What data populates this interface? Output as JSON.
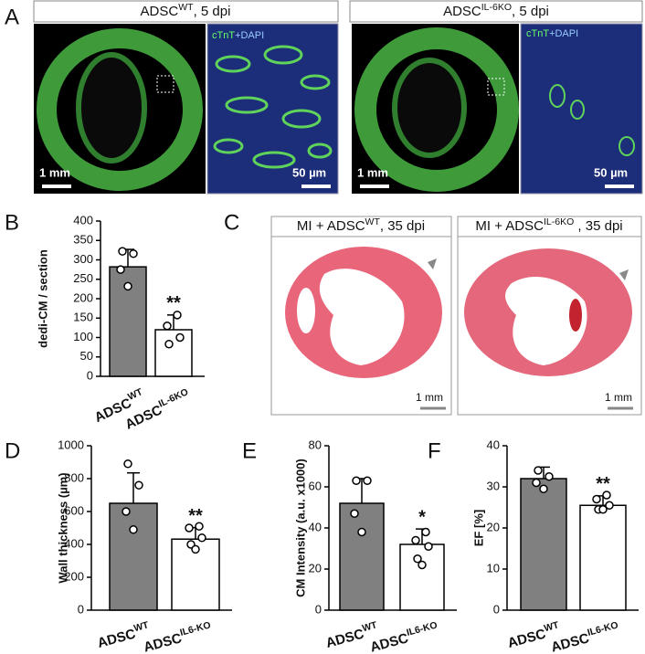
{
  "panel_a": {
    "letter": "A",
    "left": {
      "title": {
        "base": "ADSC",
        "sup": "WT",
        "rest": ", 5 dpi"
      },
      "stain": [
        "cTnT",
        "+DAPI"
      ],
      "scale_overview": "1 mm",
      "scale_zoom": "50 µm"
    },
    "right": {
      "title": {
        "base": "ADSC",
        "sup": "IL-6KO",
        "rest": ", 5 dpi"
      },
      "stain": [
        "cTnT",
        "+DAPI"
      ],
      "scale_overview": "1 mm",
      "scale_zoom": "50 µm"
    }
  },
  "panel_c": {
    "letter": "C",
    "left": {
      "title": {
        "base": "MI + ADSC",
        "sup": "WT",
        "rest": ", 35 dpi"
      },
      "scale": "1 mm"
    },
    "right": {
      "title": {
        "base": "MI + ADSC",
        "sup": "IL-6KO",
        "rest": " , 35 dpi"
      },
      "scale": "1 mm"
    }
  },
  "chart_data": [
    {
      "type": "bar",
      "label": "B",
      "ylabel": "dedi-CM / section",
      "categories": [
        {
          "base": "ADSC",
          "sup": "WT"
        },
        {
          "base": "ADSC",
          "sup": "IL-6KO"
        }
      ],
      "colors": [
        "#808080",
        "#ffffff"
      ],
      "values": [
        282,
        120
      ],
      "errors": [
        45,
        38
      ],
      "points": [
        [
          322,
          316,
          275,
          232
        ],
        [
          158,
          130,
          100,
          83
        ]
      ],
      "significance": [
        null,
        "**"
      ],
      "ylim": [
        0,
        400
      ],
      "yticks": [
        0,
        50,
        100,
        150,
        200,
        250,
        300,
        350,
        400
      ]
    },
    {
      "type": "bar",
      "label": "D",
      "ylabel": "Wall thickness (µm)",
      "categories": [
        {
          "base": "ADSC",
          "sup": "WT"
        },
        {
          "base": "ADSC",
          "sup": "IL6-KO"
        }
      ],
      "colors": [
        "#808080",
        "#ffffff"
      ],
      "values": [
        650,
        432
      ],
      "errors": [
        185,
        70
      ],
      "points": [
        [
          890,
          760,
          600,
          490
        ],
        [
          510,
          500,
          440,
          400,
          370
        ]
      ],
      "significance": [
        null,
        "**"
      ],
      "ylim": [
        0,
        1000
      ],
      "yticks": [
        0,
        200,
        400,
        600,
        800,
        1000
      ]
    },
    {
      "type": "bar",
      "label": "E",
      "ylabel": "CM Intensity (a.u. x1000)",
      "categories": [
        {
          "base": "ADSC",
          "sup": "WT"
        },
        {
          "base": "ADSC",
          "sup": "IL6-KO"
        }
      ],
      "colors": [
        "#808080",
        "#ffffff"
      ],
      "values": [
        52,
        32
      ],
      "errors": [
        12,
        7.5
      ],
      "points": [
        [
          63,
          63,
          47,
          38
        ],
        [
          38,
          34,
          31,
          25,
          22
        ]
      ],
      "significance": [
        null,
        "*"
      ],
      "ylim": [
        0,
        80
      ],
      "yticks": [
        0,
        20,
        40,
        60,
        80
      ]
    },
    {
      "type": "bar",
      "label": "F",
      "ylabel": "EF [%]",
      "categories": [
        {
          "base": "ADSC",
          "sup": "WT"
        },
        {
          "base": "ADSC",
          "sup": "IL6-KO"
        }
      ],
      "colors": [
        "#808080",
        "#ffffff"
      ],
      "values": [
        32,
        25.5
      ],
      "errors": [
        2.8,
        2.3
      ],
      "points": [
        [
          34,
          32.5,
          31,
          29.5
        ],
        [
          28,
          27,
          25.5,
          24.5,
          24.5
        ]
      ],
      "significance": [
        null,
        "**"
      ],
      "ylim": [
        0,
        40
      ],
      "yticks": [
        0,
        10,
        20,
        30,
        40
      ]
    }
  ]
}
